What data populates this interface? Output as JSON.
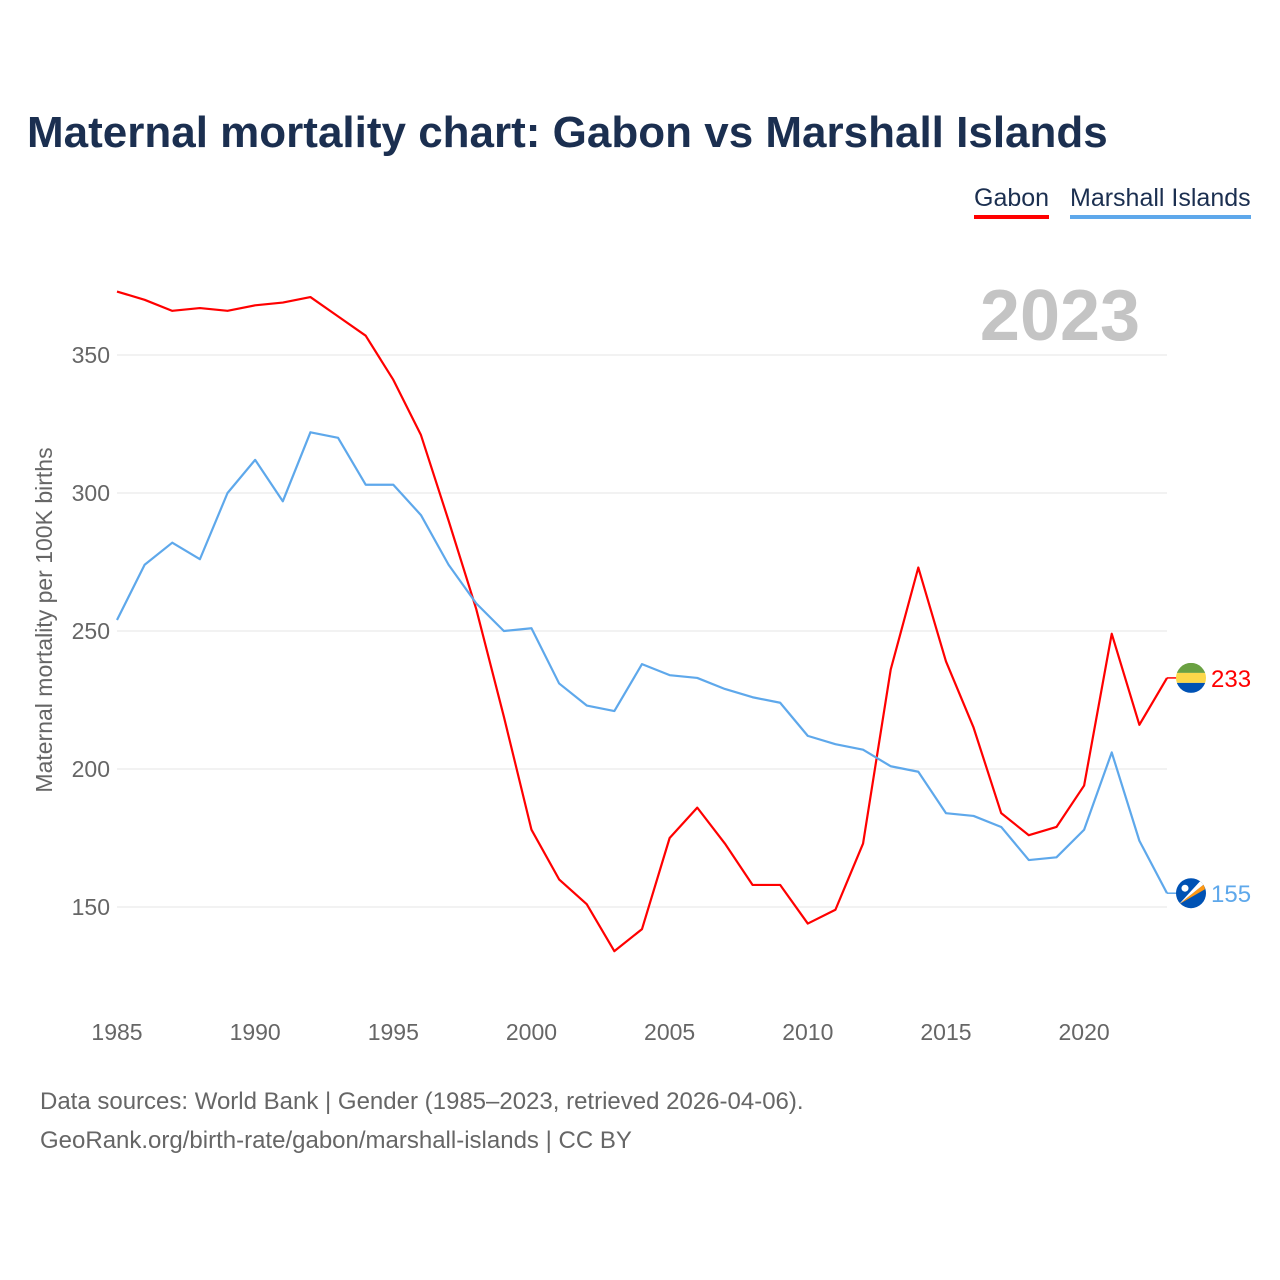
{
  "title": "Maternal mortality chart: Gabon vs Marshall Islands",
  "legend": [
    "Gabon",
    "Marshall Islands"
  ],
  "year_label": "2023",
  "footer": {
    "line1": "Data sources: World Bank | Gender (1985–2023, retrieved 2026-04-06).",
    "line2": "GeoRank.org/birth-rate/gabon/marshall-islands | CC BY"
  },
  "chart_data": {
    "type": "line",
    "title": "Maternal mortality chart: Gabon vs Marshall Islands",
    "xlabel": "",
    "ylabel": "Maternal mortality per 100K births",
    "xlim": [
      1985,
      2023
    ],
    "ylim": [
      118,
      380
    ],
    "xticks": [
      1985,
      1990,
      1995,
      2000,
      2005,
      2010,
      2015,
      2020
    ],
    "yticks": [
      150,
      200,
      250,
      300,
      350
    ],
    "grid": true,
    "legend_position": "top-right",
    "x": [
      1985,
      1986,
      1987,
      1988,
      1989,
      1990,
      1991,
      1992,
      1993,
      1994,
      1995,
      1996,
      1997,
      1998,
      1999,
      2000,
      2001,
      2002,
      2003,
      2004,
      2005,
      2006,
      2007,
      2008,
      2009,
      2010,
      2011,
      2012,
      2013,
      2014,
      2015,
      2016,
      2017,
      2018,
      2019,
      2020,
      2021,
      2022,
      2023
    ],
    "series": [
      {
        "name": "Gabon",
        "color": "#ff0000",
        "end_label": "233",
        "values": [
          373,
          370,
          366,
          367,
          366,
          368,
          369,
          371,
          364,
          357,
          341,
          321,
          290,
          258,
          219,
          178,
          160,
          151,
          134,
          142,
          175,
          186,
          173,
          158,
          158,
          144,
          149,
          173,
          236,
          273,
          239,
          215,
          184,
          176,
          179,
          194,
          249,
          216,
          233
        ]
      },
      {
        "name": "Marshall Islands",
        "color": "#5ea8eb",
        "end_label": "155",
        "values": [
          254,
          274,
          282,
          276,
          300,
          312,
          297,
          322,
          320,
          303,
          303,
          292,
          274,
          260,
          250,
          251,
          231,
          223,
          221,
          238,
          234,
          233,
          229,
          226,
          224,
          212,
          209,
          207,
          201,
          199,
          184,
          183,
          179,
          167,
          168,
          178,
          206,
          174,
          155
        ]
      }
    ]
  }
}
